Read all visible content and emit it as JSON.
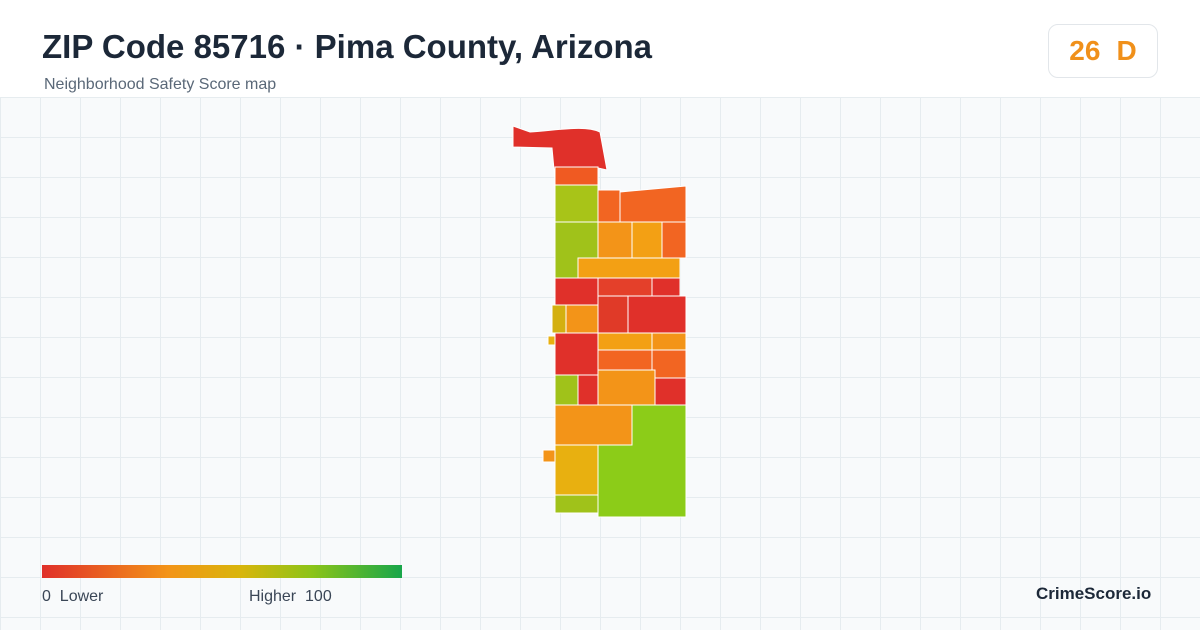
{
  "header": {
    "title": "ZIP Code 85716 · Pima County, Arizona",
    "subtitle": "Neighborhood Safety Score map"
  },
  "score": {
    "value": "26",
    "grade": "D"
  },
  "legend": {
    "min": "0",
    "min_label": "Lower",
    "max_label": "Higher",
    "max": "100"
  },
  "brand": "CrimeScore.io"
}
